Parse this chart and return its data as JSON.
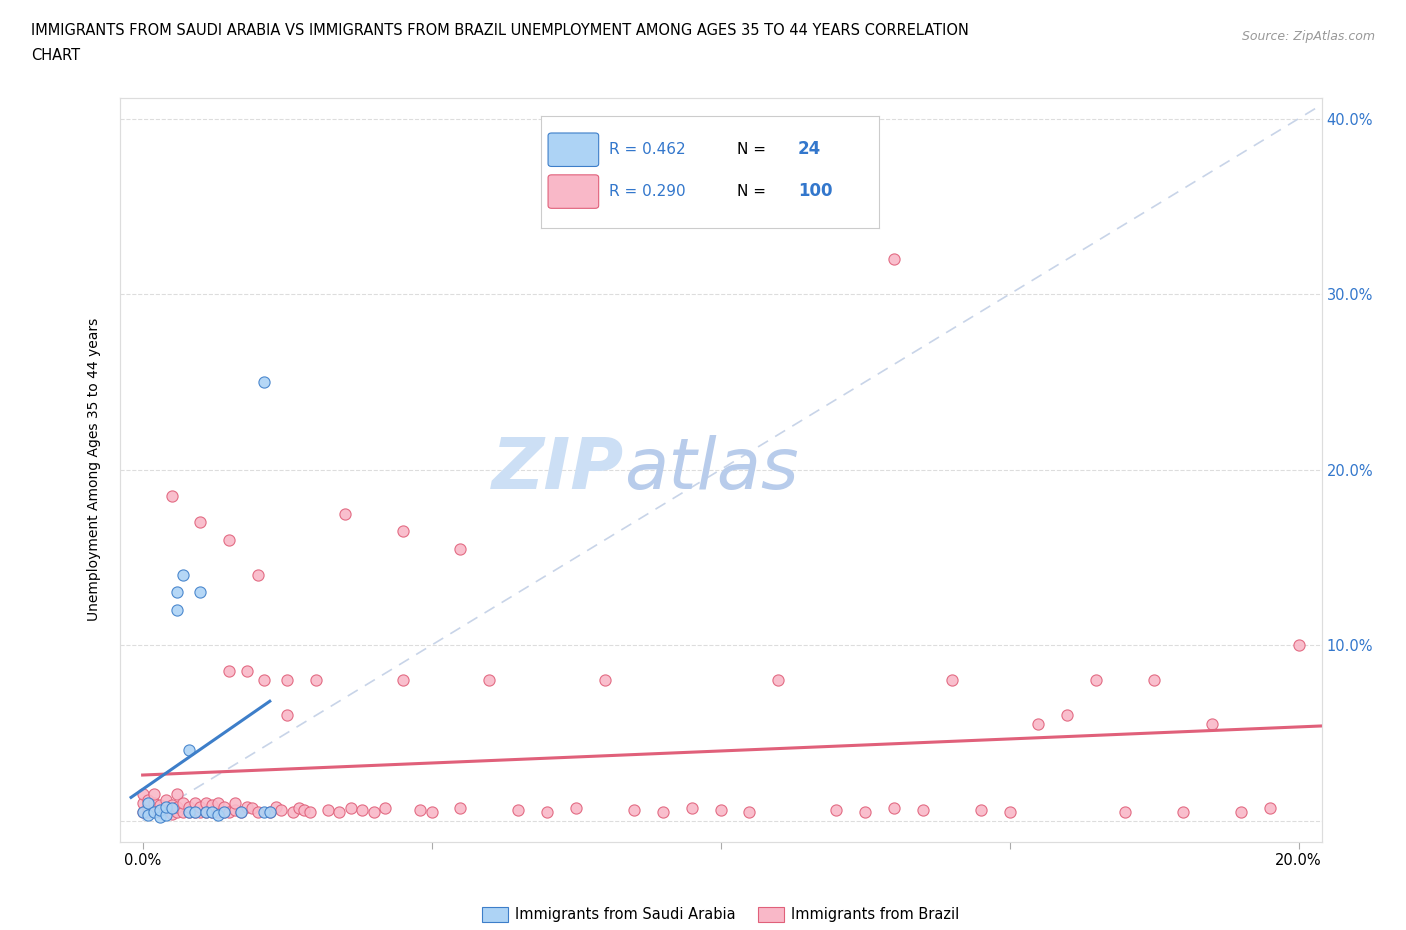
{
  "title_line1": "IMMIGRANTS FROM SAUDI ARABIA VS IMMIGRANTS FROM BRAZIL UNEMPLOYMENT AMONG AGES 35 TO 44 YEARS CORRELATION",
  "title_line2": "CHART",
  "source": "Source: ZipAtlas.com",
  "ylabel": "Unemployment Among Ages 35 to 44 years",
  "r_saudi": 0.462,
  "n_saudi": 24,
  "r_brazil": 0.29,
  "n_brazil": 100,
  "saudi_color": "#add3f5",
  "brazil_color": "#f9b8c8",
  "saudi_line_color": "#3d7ec9",
  "brazil_line_color": "#e0607a",
  "diagonal_color": "#c8d4e8",
  "xmin": -0.004,
  "xmax": 0.204,
  "ymin": -0.012,
  "ymax": 0.412,
  "xticks": [
    0.0,
    0.05,
    0.1,
    0.15,
    0.2
  ],
  "yticks": [
    0.0,
    0.1,
    0.2,
    0.3,
    0.4
  ],
  "saudi_scatter_x": [
    0.0,
    0.001,
    0.001,
    0.002,
    0.003,
    0.003,
    0.004,
    0.004,
    0.005,
    0.006,
    0.006,
    0.007,
    0.008,
    0.008,
    0.009,
    0.01,
    0.011,
    0.012,
    0.013,
    0.014,
    0.017,
    0.021,
    0.021,
    0.022
  ],
  "saudi_scatter_y": [
    0.005,
    0.003,
    0.01,
    0.005,
    0.002,
    0.006,
    0.003,
    0.008,
    0.007,
    0.12,
    0.13,
    0.14,
    0.005,
    0.04,
    0.005,
    0.13,
    0.005,
    0.005,
    0.003,
    0.005,
    0.005,
    0.25,
    0.005,
    0.005
  ],
  "brazil_scatter_x": [
    0.0,
    0.0,
    0.0,
    0.001,
    0.001,
    0.001,
    0.002,
    0.002,
    0.002,
    0.003,
    0.003,
    0.004,
    0.004,
    0.005,
    0.005,
    0.006,
    0.006,
    0.006,
    0.007,
    0.007,
    0.008,
    0.008,
    0.009,
    0.009,
    0.01,
    0.01,
    0.011,
    0.011,
    0.012,
    0.012,
    0.013,
    0.013,
    0.014,
    0.014,
    0.015,
    0.015,
    0.016,
    0.016,
    0.017,
    0.018,
    0.018,
    0.019,
    0.02,
    0.021,
    0.022,
    0.023,
    0.024,
    0.025,
    0.026,
    0.027,
    0.028,
    0.029,
    0.03,
    0.032,
    0.034,
    0.036,
    0.038,
    0.04,
    0.042,
    0.045,
    0.048,
    0.05,
    0.055,
    0.06,
    0.065,
    0.07,
    0.075,
    0.08,
    0.085,
    0.09,
    0.095,
    0.1,
    0.105,
    0.11,
    0.12,
    0.125,
    0.13,
    0.135,
    0.14,
    0.145,
    0.15,
    0.16,
    0.17,
    0.175,
    0.18,
    0.185,
    0.19,
    0.195,
    0.2,
    0.13,
    0.155,
    0.165,
    0.025,
    0.035,
    0.045,
    0.055,
    0.01,
    0.015,
    0.02,
    0.005
  ],
  "brazil_scatter_y": [
    0.005,
    0.01,
    0.015,
    0.005,
    0.008,
    0.012,
    0.006,
    0.01,
    0.015,
    0.005,
    0.009,
    0.006,
    0.012,
    0.004,
    0.009,
    0.005,
    0.008,
    0.015,
    0.005,
    0.01,
    0.005,
    0.008,
    0.005,
    0.01,
    0.005,
    0.008,
    0.005,
    0.01,
    0.005,
    0.009,
    0.005,
    0.01,
    0.005,
    0.008,
    0.005,
    0.085,
    0.006,
    0.01,
    0.005,
    0.008,
    0.085,
    0.007,
    0.005,
    0.08,
    0.005,
    0.008,
    0.006,
    0.08,
    0.005,
    0.007,
    0.006,
    0.005,
    0.08,
    0.006,
    0.005,
    0.007,
    0.006,
    0.005,
    0.007,
    0.08,
    0.006,
    0.005,
    0.007,
    0.08,
    0.006,
    0.005,
    0.007,
    0.08,
    0.006,
    0.005,
    0.007,
    0.006,
    0.005,
    0.08,
    0.006,
    0.005,
    0.007,
    0.006,
    0.08,
    0.006,
    0.005,
    0.06,
    0.005,
    0.08,
    0.005,
    0.055,
    0.005,
    0.007,
    0.1,
    0.32,
    0.055,
    0.08,
    0.06,
    0.175,
    0.165,
    0.155,
    0.17,
    0.16,
    0.14,
    0.185
  ],
  "watermark_zip_color": "#c8ddf0",
  "watermark_atlas_color": "#c0d8f0",
  "tick_color": "#3377cc",
  "grid_color": "#dddddd",
  "spine_color": "#dddddd"
}
